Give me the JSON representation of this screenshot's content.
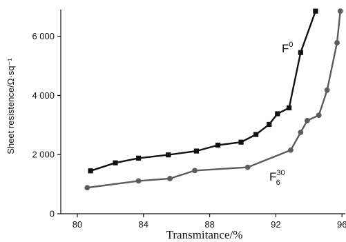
{
  "chart_data": {
    "type": "line",
    "xlabel": "Transmitance/%",
    "ylabel": "Sheet resistence/Ω·sq⁻¹",
    "xlim": [
      79,
      96.2
    ],
    "ylim": [
      0,
      6900
    ],
    "xticks": [
      80,
      84,
      88,
      92,
      96
    ],
    "yticks": [
      0,
      2000,
      4000,
      6000
    ],
    "xtick_labels": [
      "80",
      "84",
      "88",
      "92",
      "96"
    ],
    "ytick_labels": [
      "0",
      "2 000",
      "4 000",
      "6 000"
    ],
    "grid": false,
    "series": [
      {
        "name": "F0",
        "label_base": "F",
        "label_sup": "0",
        "color": "#111111",
        "marker": "square",
        "x": [
          80.8,
          82.3,
          83.7,
          85.5,
          87.2,
          88.5,
          89.9,
          90.8,
          91.6,
          92.1,
          92.8,
          93.5,
          94.4
        ],
        "y": [
          1450,
          1720,
          1880,
          1990,
          2120,
          2320,
          2420,
          2680,
          3020,
          3380,
          3580,
          5450,
          6850
        ]
      },
      {
        "name": "F6 30",
        "label_base": "F",
        "label_sup": "30",
        "label_sub": "6",
        "color": "#5c5c5c",
        "marker": "circle",
        "x": [
          80.6,
          83.7,
          85.6,
          87.1,
          90.3,
          92.9,
          93.5,
          93.9,
          94.6,
          95.1,
          95.7,
          95.9
        ],
        "y": [
          880,
          1110,
          1190,
          1460,
          1570,
          2150,
          2750,
          3150,
          3330,
          4180,
          5780,
          6850
        ]
      }
    ]
  }
}
